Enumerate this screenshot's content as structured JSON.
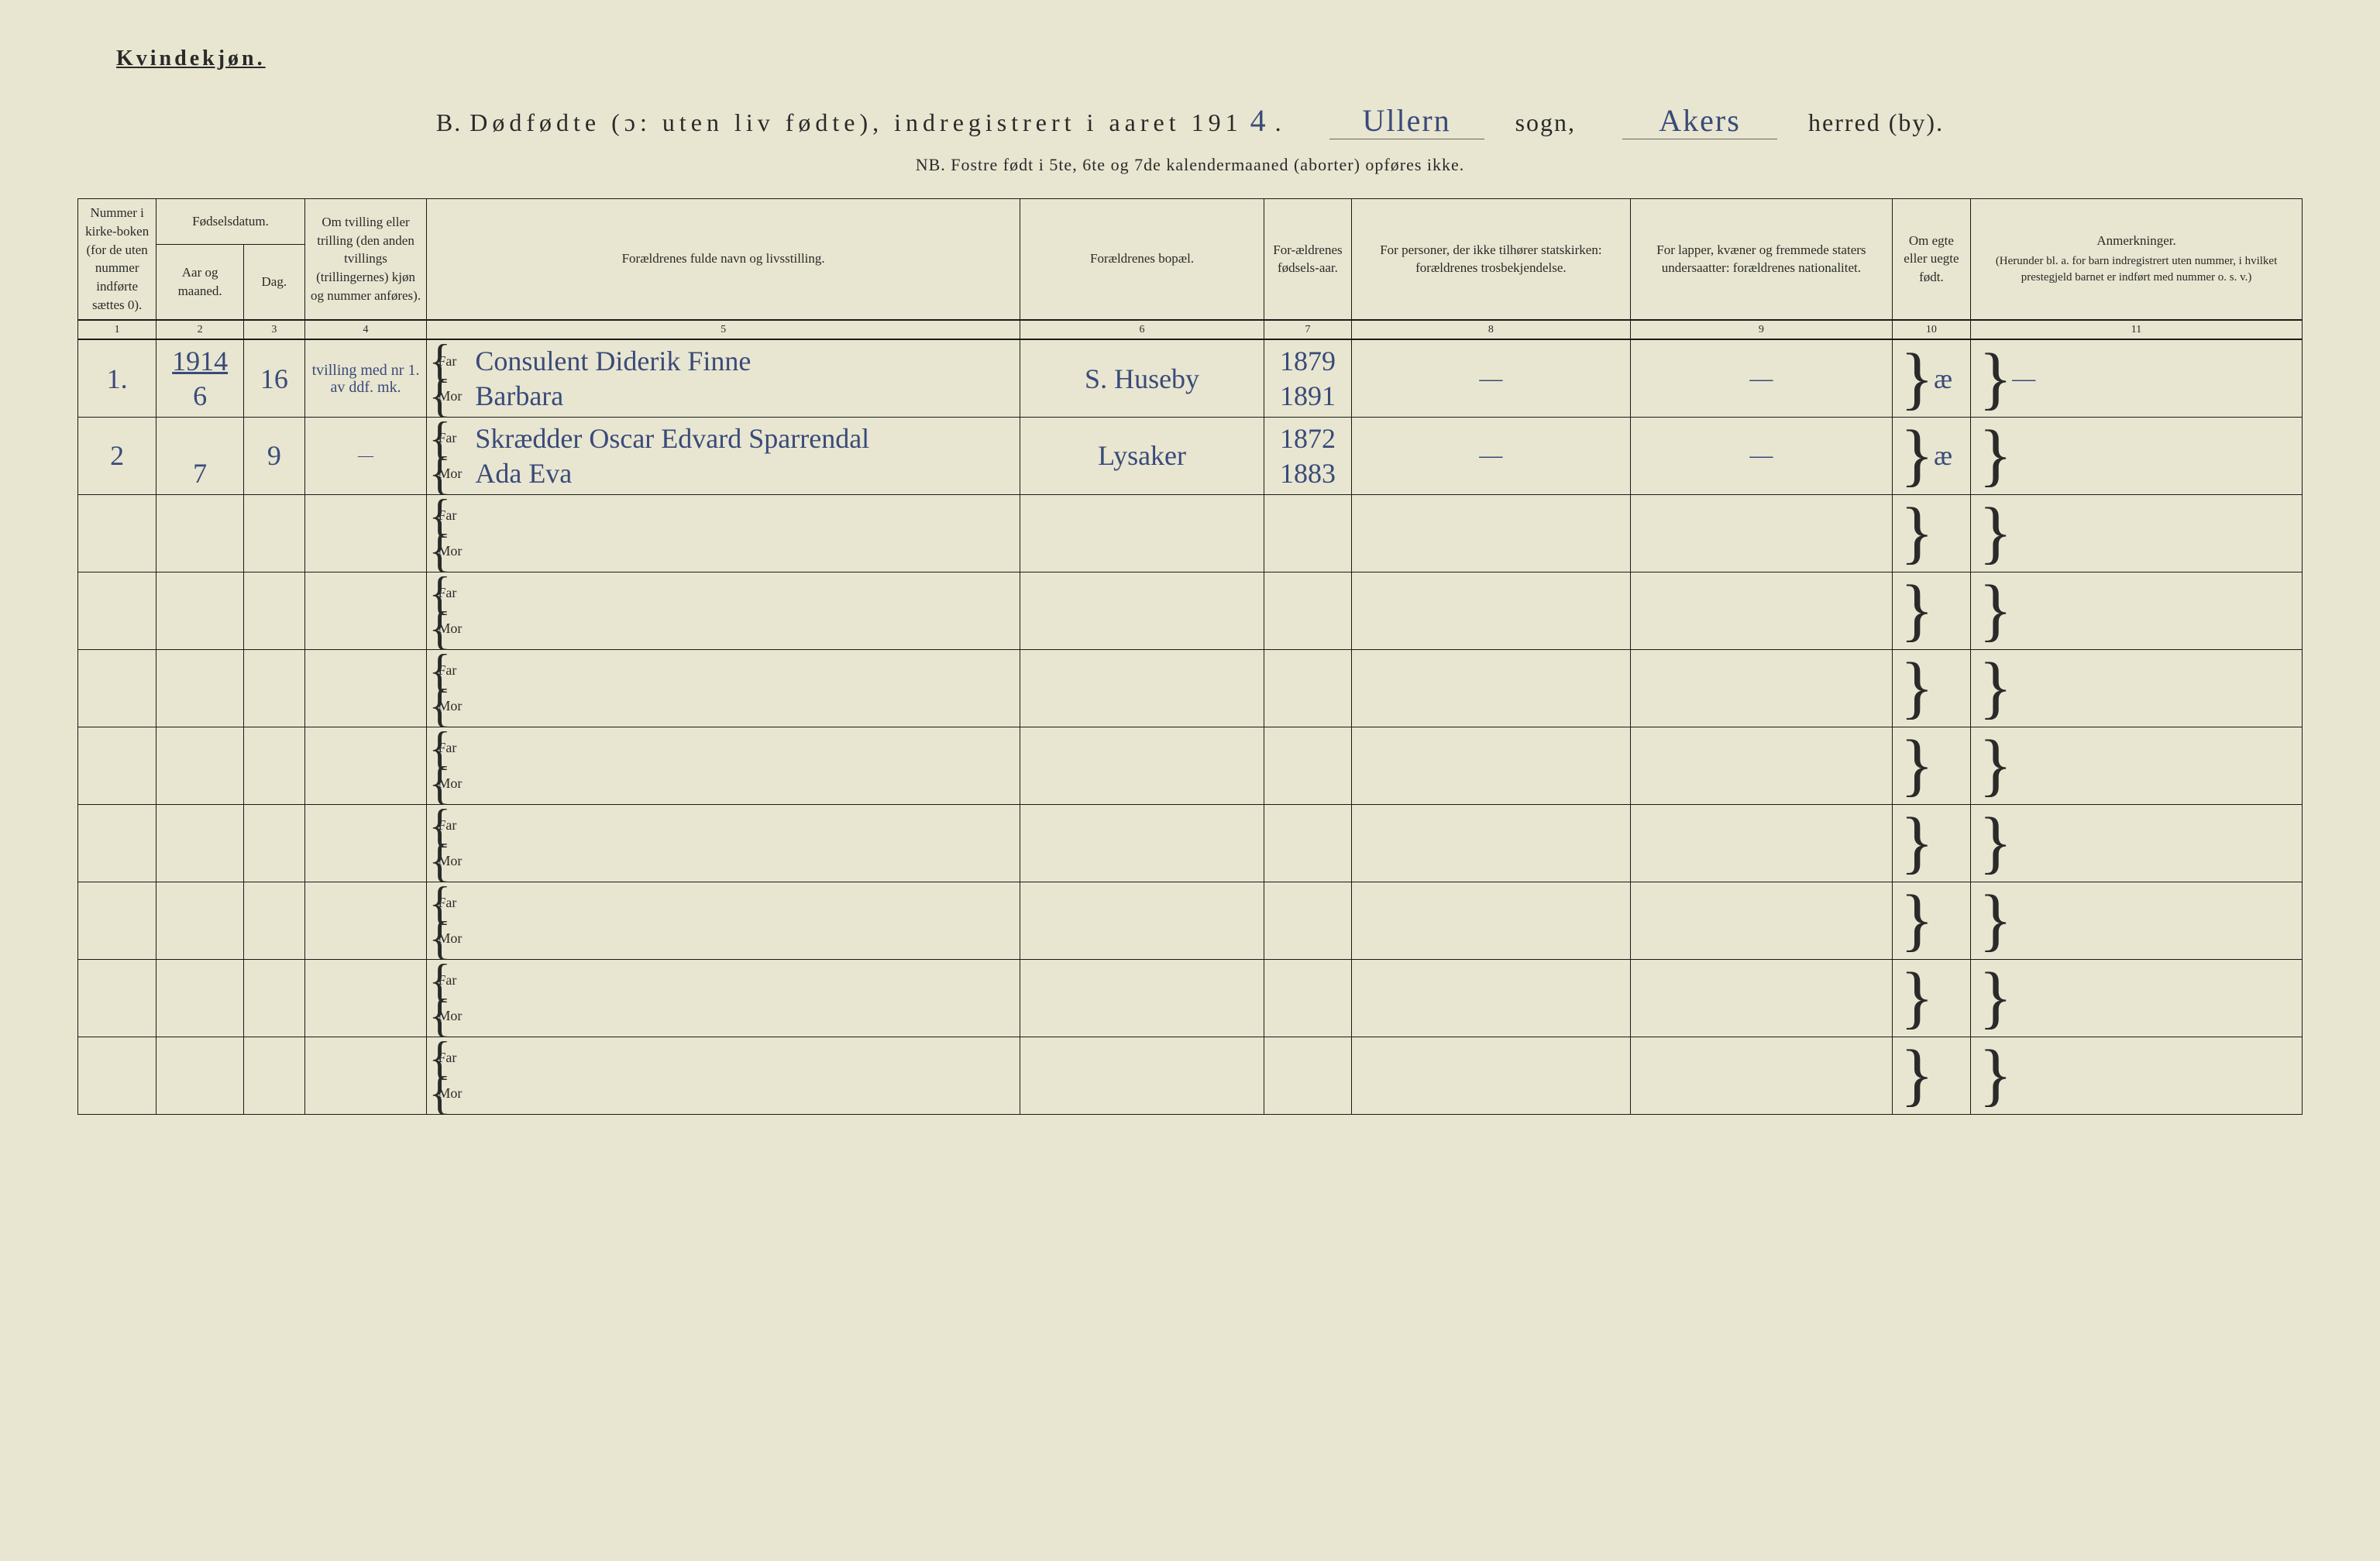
{
  "header": {
    "top_left": "Kvindekjøn.",
    "title_prefix": "B.",
    "title_main": "Dødfødte (ɔ: uten liv fødte), indregistrert i aaret 191",
    "year_suffix": "4",
    "sogn_value": "Ullern",
    "sogn_label": "sogn,",
    "herred_value": "Akers",
    "herred_label": "herred (by).",
    "nb": "NB. Fostre født i 5te, 6te og 7de kalendermaaned (aborter) opføres ikke."
  },
  "columns": {
    "c1": "Nummer i kirke-boken (for de uten nummer indførte sættes 0).",
    "c2_top": "Fødselsdatum.",
    "c2a": "Aar og maaned.",
    "c2b": "Dag.",
    "c4": "Om tvilling eller trilling (den anden tvillings (trillingernes) kjøn og nummer anføres).",
    "c5": "Forældrenes fulde navn og livsstilling.",
    "c6": "Forældrenes bopæl.",
    "c7": "For-ældrenes fødsels-aar.",
    "c8": "For personer, der ikke tilhører statskirken: forældrenes trosbekjendelse.",
    "c9": "For lapper, kvæner og fremmede staters undersaatter: forældrenes nationalitet.",
    "c10": "Om egte eller uegte født.",
    "c11": "Anmerkninger.",
    "c11_sub": "(Herunder bl. a. for barn indregistrert uten nummer, i hvilket prestegjeld barnet er indført med nummer o. s. v.)",
    "nums": [
      "1",
      "2",
      "3",
      "4",
      "5",
      "6",
      "7",
      "8",
      "9",
      "10",
      "11"
    ],
    "far": "Far",
    "mor": "Mor"
  },
  "rows": [
    {
      "num": "1.",
      "year": "1914",
      "month": "6",
      "day": "16",
      "tvilling": "tvilling med nr 1. av ddf. mk.",
      "far": "Consulent Diderik Finne",
      "mor": "Barbara",
      "bopel": "S. Huseby",
      "far_aar": "1879",
      "mor_aar": "1891",
      "c8": "—",
      "c9": "—",
      "egte": "æ",
      "anm": "—"
    },
    {
      "num": "2",
      "year": "",
      "month": "7",
      "day": "9",
      "tvilling": "—",
      "far": "Skrædder Oscar Edvard Sparrendal",
      "mor": "Ada Eva",
      "bopel": "Lysaker",
      "far_aar": "1872",
      "mor_aar": "1883",
      "c8": "—",
      "c9": "—",
      "egte": "æ",
      "anm": ""
    }
  ],
  "empty_rows": 8
}
